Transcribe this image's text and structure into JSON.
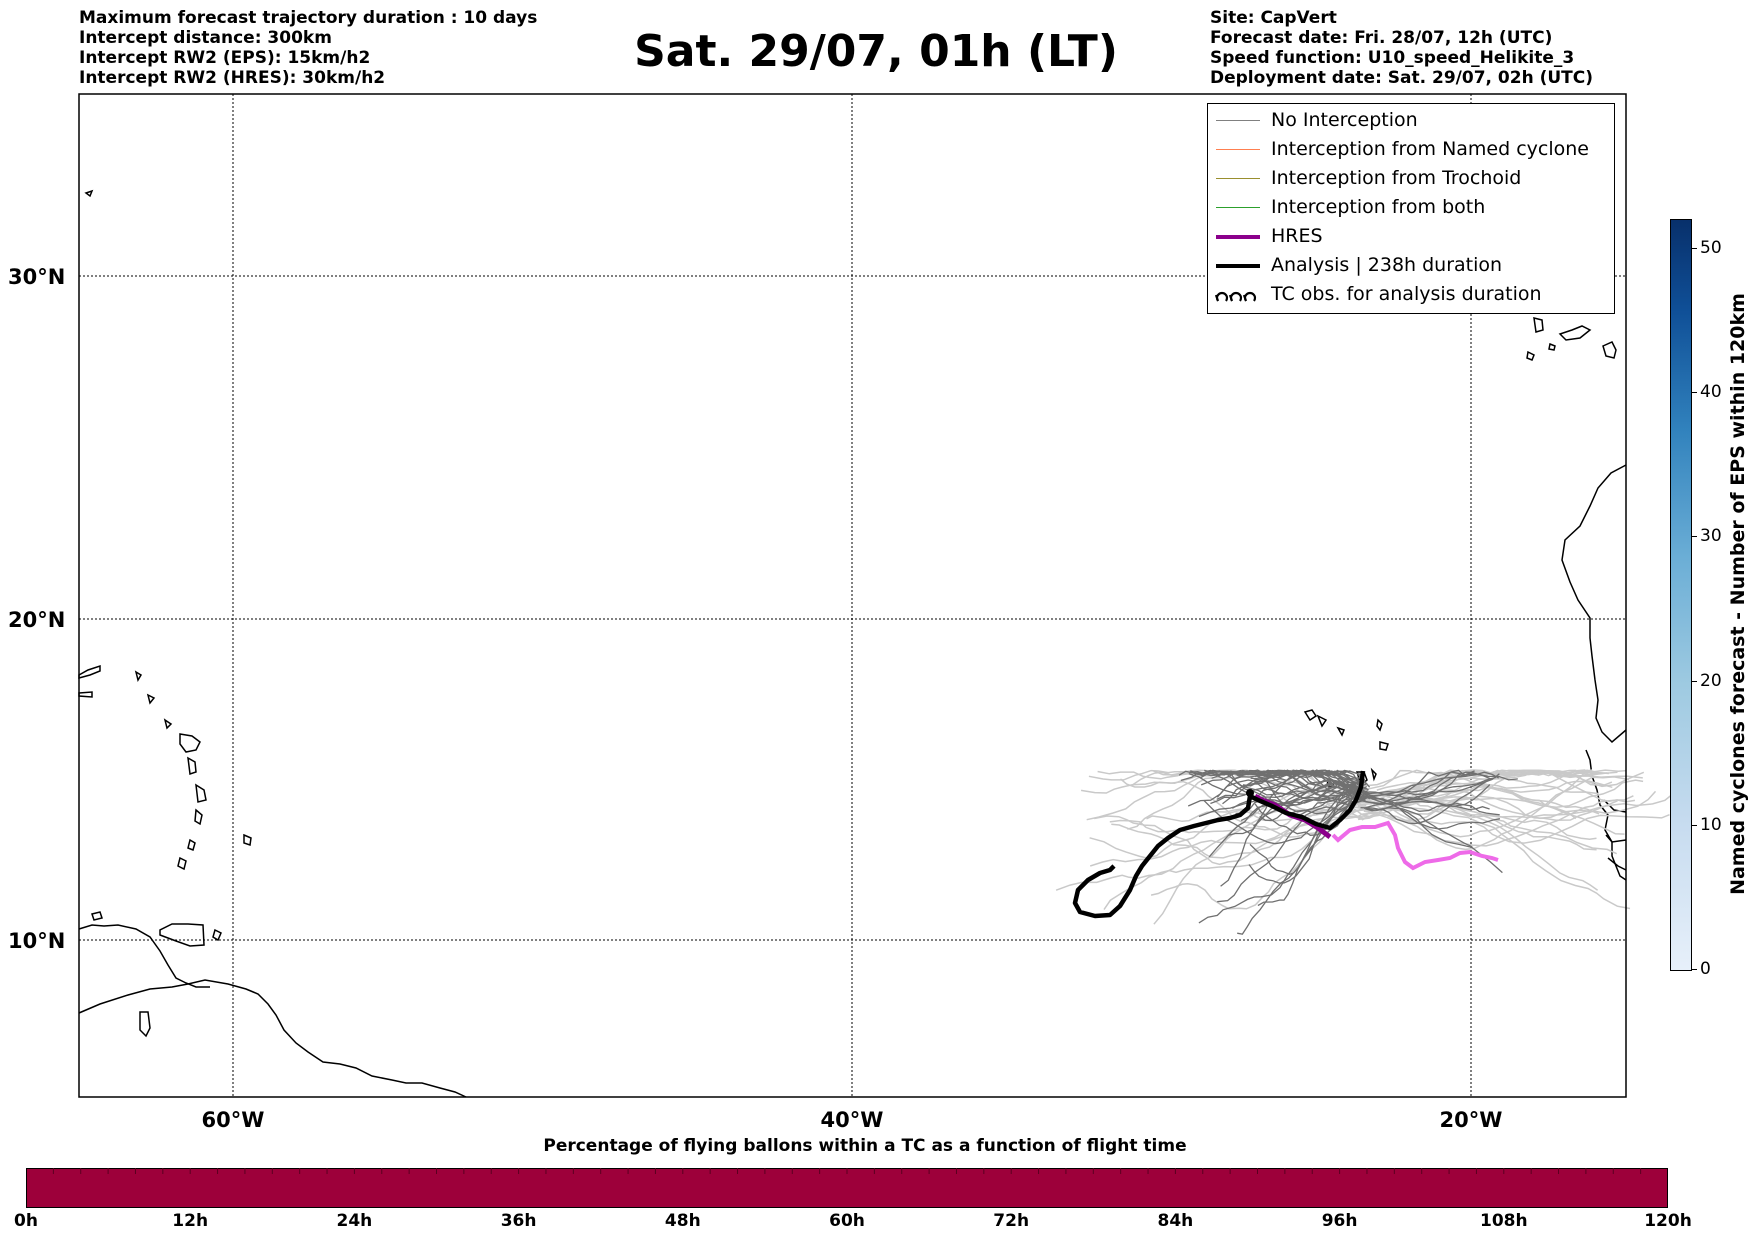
{
  "header": {
    "left": [
      "Maximum forecast trajectory duration : 10 days",
      "Intercept distance: 300km",
      "Intercept RW2 (EPS):  15km/h2",
      "Intercept RW2 (HRES): 30km/h2"
    ],
    "right": [
      "Site: CapVert",
      "Forecast date: Fri. 28/07, 12h (UTC)",
      "Speed function: U10_speed_Helikite_3",
      "Deployment date: Sat. 29/07, 02h (UTC)"
    ],
    "title": "Sat. 29/07, 01h (LT)"
  },
  "map": {
    "lon_range": [
      -65,
      -15
    ],
    "lat_range": [
      5.5,
      35
    ],
    "lat_labels": [
      "30°N",
      "20°N",
      "10°N"
    ],
    "lon_labels": [
      "60°W",
      "40°W",
      "20°W"
    ],
    "colors": {
      "no_interception": "#808080",
      "named": "#ff7f50",
      "trochoid": "#9a8f2e",
      "both": "#2ca02c",
      "hres": "#8b008b",
      "analysis": "#000000",
      "pink": "#ee6ae8",
      "faint": "#c9c9c9"
    }
  },
  "legend": {
    "items": [
      {
        "label": "No Interception",
        "color": "#808080",
        "width": 1
      },
      {
        "label": "Interception from Named cyclone",
        "color": "#ff7f50",
        "width": 1
      },
      {
        "label": "Interception from Trochoid",
        "color": "#9a8f2e",
        "width": 1
      },
      {
        "label": "Interception from both",
        "color": "#2ca02c",
        "width": 1
      },
      {
        "label": "HRES",
        "color": "#8b008b",
        "width": 4
      },
      {
        "label": "Analysis | 238h duration",
        "color": "#000000",
        "width": 4
      },
      {
        "label": "TC obs. for analysis duration",
        "icon": "cyclone-icon"
      }
    ]
  },
  "colorbar": {
    "title": "Named cyclones forecast - Number of EPS within 120km",
    "ticks": [
      "0",
      "10",
      "20",
      "30",
      "40",
      "50"
    ],
    "max": 52
  },
  "hbar": {
    "title": "Percentage of flying ballons within a TC as a function of flight time",
    "ticks": [
      "0h",
      "12h",
      "24h",
      "36h",
      "48h",
      "60h",
      "72h",
      "84h",
      "96h",
      "108h",
      "120h"
    ]
  }
}
